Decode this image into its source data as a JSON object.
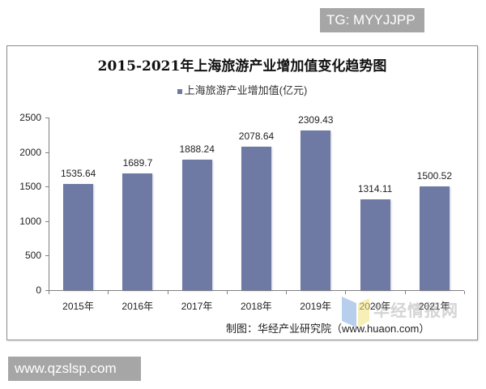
{
  "badges": {
    "top": "TG: MYYJJPP",
    "bottom": "www.qzslsp.com"
  },
  "source_note": "制图：华经产业研究院（www.huaon.com）",
  "watermark": "华经情报网",
  "colors": {
    "bar": "#6e7aa3",
    "axis": "#808080",
    "badge": "#a6a6a6"
  },
  "chart_data": {
    "type": "bar",
    "title": "2015-2021年上海旅游产业增加值变化趋势图",
    "legend": [
      "上海旅游产业增加值(亿元)"
    ],
    "legend_position": "top",
    "categories": [
      "2015年",
      "2016年",
      "2017年",
      "2018年",
      "2019年",
      "2020年",
      "2021年"
    ],
    "series": [
      {
        "name": "上海旅游产业增加值(亿元)",
        "values": [
          1535.64,
          1689.7,
          1888.24,
          2078.64,
          2309.43,
          1314.11,
          1500.52
        ]
      }
    ],
    "value_labels": [
      "1535.64",
      "1689.7",
      "1888.24",
      "2078.64",
      "2309.43",
      "1314.11",
      "1500.52"
    ],
    "xlabel": "",
    "ylabel": "",
    "ylim": [
      0,
      2500
    ],
    "yticks": [
      "0",
      "500",
      "1000",
      "1500",
      "2000",
      "2500"
    ],
    "grid": false
  }
}
